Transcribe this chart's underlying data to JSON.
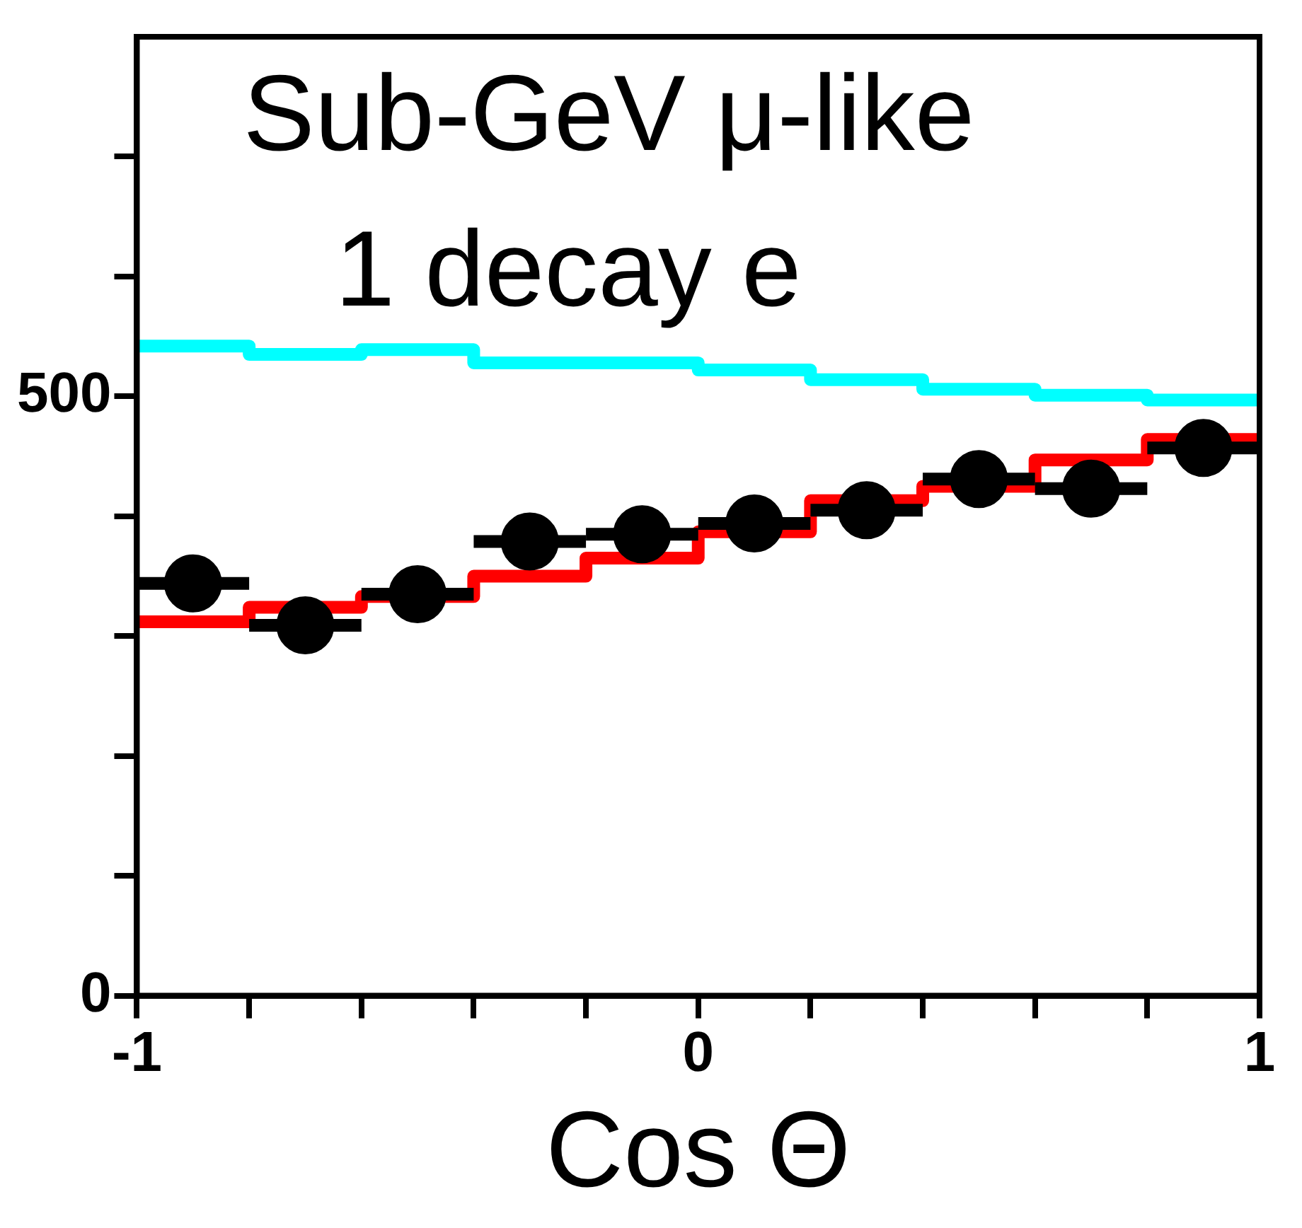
{
  "chart_data": {
    "type": "step",
    "title": "Sub-GeV μ-like",
    "subtitle": "1 decay e",
    "xlabel": "Cos Θ",
    "xlim": [
      -1,
      1
    ],
    "xticks": [
      -1,
      {
        "value": -0.8,
        "label": null
      },
      {
        "value": -0.6,
        "label": null
      },
      {
        "value": -0.4,
        "label": null
      },
      {
        "value": -0.2,
        "label": null
      },
      0,
      {
        "value": 0.2,
        "label": null
      },
      {
        "value": 0.4,
        "label": null
      },
      {
        "value": 0.6,
        "label": null
      },
      {
        "value": 0.8,
        "label": null
      },
      1
    ],
    "ylim": [
      0,
      800
    ],
    "yticks": [
      0,
      {
        "value": 100,
        "label": null
      },
      {
        "value": 200,
        "label": null
      },
      {
        "value": 300,
        "label": null
      },
      {
        "value": 400,
        "label": null
      },
      500,
      {
        "value": 600,
        "label": null
      },
      {
        "value": 700,
        "label": null
      }
    ],
    "x": [
      -0.9,
      -0.7,
      -0.5,
      -0.3,
      -0.1,
      0.1,
      0.3,
      0.5,
      0.7,
      0.9
    ],
    "series": [
      {
        "color": "#00ffff",
        "x": [
          -1,
          -0.8,
          -0.6,
          -0.4,
          -0.2,
          0,
          0.2,
          0.4,
          0.6,
          0.8,
          1
        ],
        "values": [
          542,
          535,
          539,
          528,
          528,
          522,
          514,
          506,
          501,
          497,
          497
        ]
      },
      {
        "color": "#ff0000",
        "x": [
          -1,
          -0.8,
          -0.6,
          -0.4,
          -0.2,
          0,
          0.2,
          0.4,
          0.6,
          0.8,
          1
        ],
        "values": [
          312,
          324,
          333,
          350,
          365,
          387,
          413,
          425,
          447,
          464,
          464
        ]
      },
      {
        "type": "scatter",
        "color": "#000000",
        "marker": "circle",
        "values": [
          344,
          309,
          335,
          379,
          385,
          394,
          405,
          431,
          423,
          457
        ],
        "xerrors": [
          0.1,
          0.1,
          0.1,
          0.1,
          0.1,
          0.1,
          0.1,
          0.1,
          0.1,
          0.1
        ]
      }
    ],
    "legend": false
  }
}
